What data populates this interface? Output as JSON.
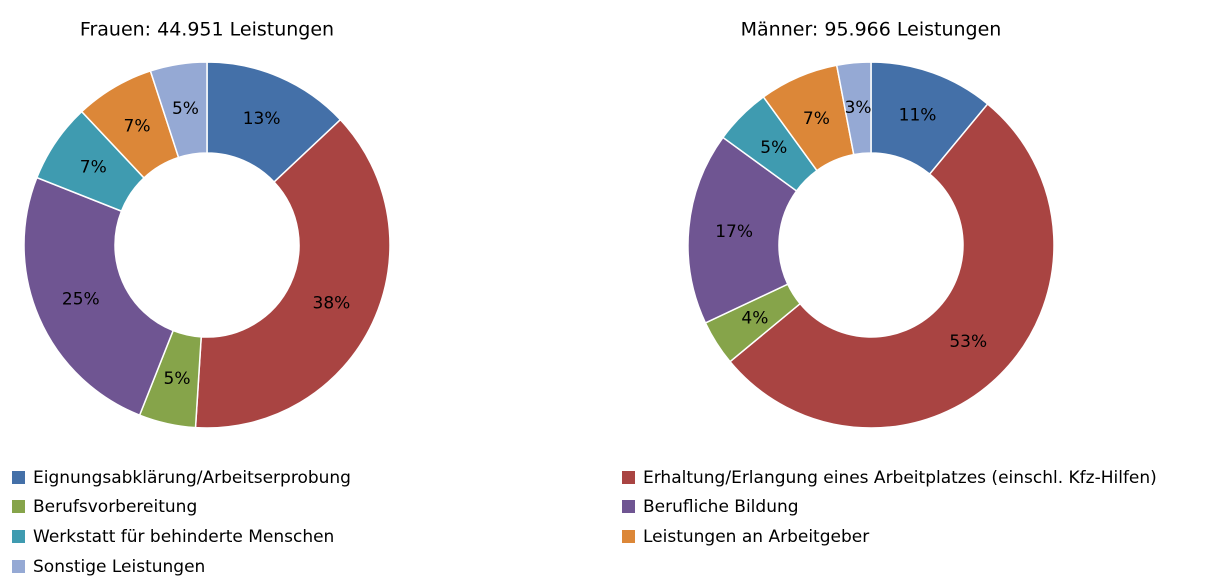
{
  "chart_data": [
    {
      "type": "donut",
      "title": "Frauen: 44.951 Leistungen",
      "categories": [
        "Eignungsabklärung/Arbeitserprobung",
        "Erhaltung/Erlangung eines Arbeitplatzes (einschl. Kfz-Hilfen)",
        "Berufsvorbereitung",
        "Berufliche Bildung",
        "Werkstatt für behinderte Menschen",
        "Leistungen an Arbeitgeber",
        "Sonstige Leistungen"
      ],
      "values": [
        13,
        38,
        5,
        25,
        7,
        7,
        5
      ],
      "value_labels": [
        "13%",
        "38%",
        "5%",
        "25%",
        "7%",
        "7%",
        "5%"
      ],
      "colors": [
        "#4470a8",
        "#a94442",
        "#86a44a",
        "#6f5592",
        "#3f9bb0",
        "#dc8738",
        "#95a9d4"
      ],
      "legend": true
    },
    {
      "type": "donut",
      "title": "Männer: 95.966 Leistungen",
      "categories": [
        "Eignungsabklärung/Arbeitserprobung",
        "Erhaltung/Erlangung eines Arbeitplatzes (einschl. Kfz-Hilfen)",
        "Berufsvorbereitung",
        "Berufliche Bildung",
        "Werkstatt für behinderte Menschen",
        "Leistungen an Arbeitgeber",
        "Sonstige Leistungen"
      ],
      "values": [
        11,
        53,
        4,
        17,
        5,
        7,
        3
      ],
      "value_labels": [
        "11%",
        "53%",
        "4%",
        "17%",
        "5%",
        "7%",
        "3%"
      ],
      "colors": [
        "#4470a8",
        "#a94442",
        "#86a44a",
        "#6f5592",
        "#3f9bb0",
        "#dc8738",
        "#95a9d4"
      ],
      "legend": false
    }
  ]
}
